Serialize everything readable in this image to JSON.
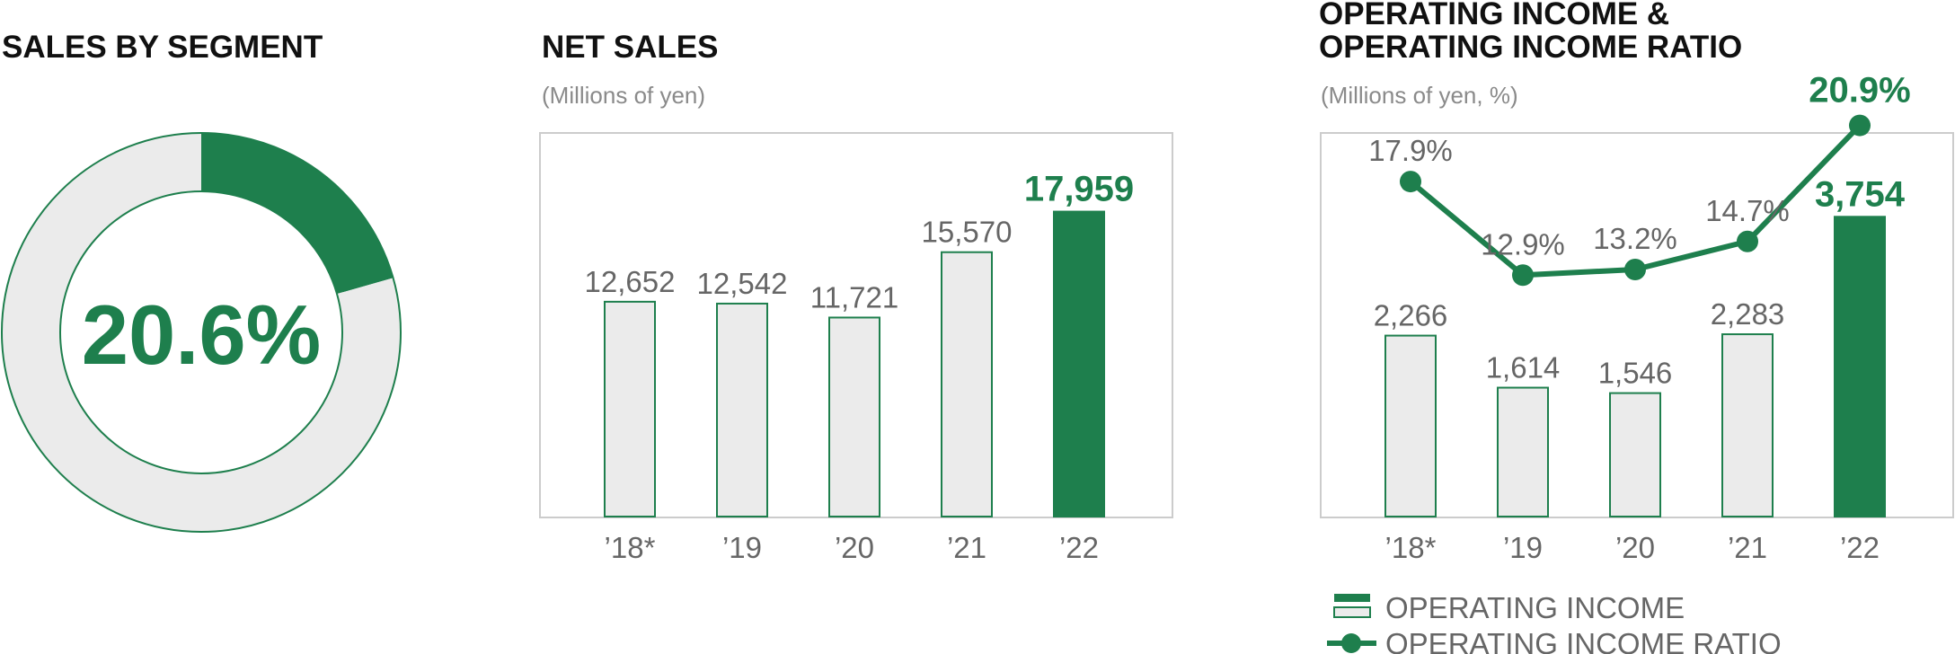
{
  "colors": {
    "accent": "#1e7f4d",
    "bar_light": "#ebebeb",
    "text_gray": "#666666",
    "frame": "#cccccc"
  },
  "segment": {
    "title": "SALES BY SEGMENT",
    "value_label": "20.6%"
  },
  "net_sales": {
    "title": "NET SALES",
    "unit": "(Millions of yen)"
  },
  "operating": {
    "title_line1": "OPERATING INCOME &",
    "title_line2": "OPERATING INCOME RATIO",
    "unit": "(Millions of yen, %)",
    "legend": {
      "income": "OPERATING INCOME",
      "ratio": "OPERATING INCOME RATIO"
    }
  },
  "chart_data": [
    {
      "type": "pie",
      "title": "SALES BY SEGMENT",
      "values": [
        20.6,
        79.4
      ],
      "highlight_index": 0,
      "center_label": "20.6%"
    },
    {
      "type": "bar",
      "title": "NET SALES",
      "ylabel": "(Millions of yen)",
      "categories": [
        "’18*",
        "’19",
        "’20",
        "’21",
        "’22"
      ],
      "values": [
        12652,
        12542,
        11721,
        15570,
        17959
      ],
      "value_labels": [
        "12,652",
        "12,542",
        "11,721",
        "15,570",
        "17,959"
      ],
      "highlight_index": 4,
      "ylim": [
        0,
        20000
      ],
      "grid": false
    },
    {
      "type": "bar",
      "title": "OPERATING INCOME & OPERATING INCOME RATIO",
      "ylabel": "(Millions of yen, %)",
      "categories": [
        "’18*",
        "’19",
        "’20",
        "’21",
        "’22"
      ],
      "series": [
        {
          "name": "OPERATING INCOME",
          "type": "bar",
          "values": [
            2266,
            1614,
            1546,
            2283,
            3754
          ],
          "value_labels": [
            "2,266",
            "1,614",
            "1,546",
            "2,283",
            "3,754"
          ],
          "ylim": [
            0,
            4500
          ]
        },
        {
          "name": "OPERATING INCOME RATIO",
          "type": "line",
          "values": [
            17.9,
            12.9,
            13.2,
            14.7,
            20.9
          ],
          "value_labels": [
            "17.9%",
            "12.9%",
            "13.2%",
            "14.7%",
            "20.9%"
          ],
          "ylim": [
            0,
            24
          ]
        }
      ],
      "highlight_index": 4,
      "grid": false
    }
  ]
}
